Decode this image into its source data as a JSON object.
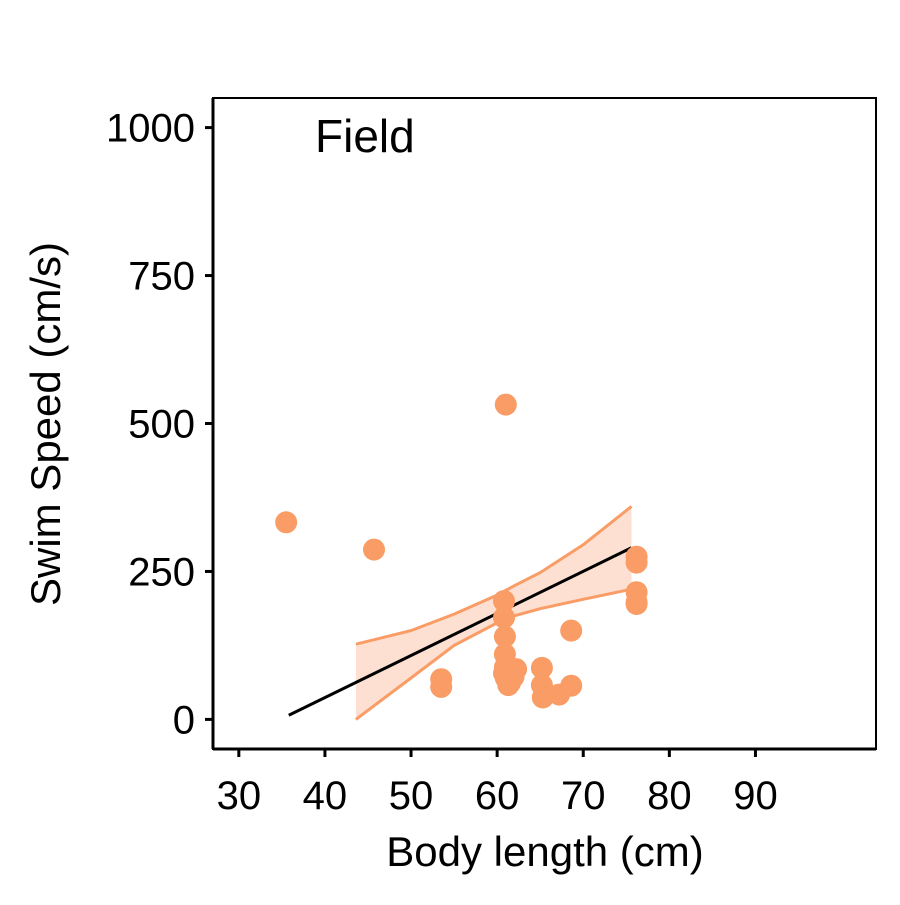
{
  "chart_data": {
    "type": "scatter",
    "title": "",
    "panel_label": "Field",
    "xlabel": "Body length (cm)",
    "ylabel": "Swim Speed (cm/s)",
    "xlim": [
      27,
      104
    ],
    "ylim": [
      -50,
      1050
    ],
    "x_ticks": [
      30,
      40,
      50,
      60,
      70,
      80,
      90
    ],
    "x_tick_labels": [
      "30",
      "40",
      "50",
      "60",
      "70",
      "80",
      "90"
    ],
    "y_ticks": [
      0,
      250,
      500,
      750,
      1000
    ],
    "y_tick_labels": [
      "0",
      "250",
      "500",
      "750",
      "1000"
    ],
    "grid": false,
    "legend": "none",
    "colors": {
      "points": "#F99C65",
      "ci_fill": "#FDE0D2",
      "ci_line": "#F99C65",
      "trend": "#000000"
    },
    "series": [
      {
        "type": "points",
        "x": [
          35.5,
          45.7,
          53.5,
          53.5,
          61.0,
          60.8,
          60.8,
          60.9,
          60.9,
          60.9,
          60.8,
          61.0,
          61.3,
          61.5,
          62.2,
          61.9,
          65.2,
          65.2,
          65.3,
          67.2,
          68.6,
          68.6,
          76.2,
          76.2,
          76.2,
          76.2,
          76.2
        ],
        "y": [
          333,
          287,
          68,
          55,
          532,
          200,
          172,
          140,
          110,
          88,
          78,
          70,
          58,
          62,
          85,
          72,
          87,
          58,
          37,
          42,
          150,
          57,
          275,
          265,
          215,
          195,
          198
        ]
      },
      {
        "type": "trend",
        "x": [
          35.8,
          75.6
        ],
        "y": [
          7,
          290
        ]
      },
      {
        "type": "ci_band",
        "x": [
          43.6,
          50,
          55,
          60,
          62,
          65,
          70,
          75.6
        ],
        "upper": [
          127,
          150,
          178,
          210,
          226,
          248,
          295,
          360
        ],
        "lower": [
          0,
          70,
          125,
          163,
          175,
          187,
          203,
          220
        ]
      }
    ]
  }
}
